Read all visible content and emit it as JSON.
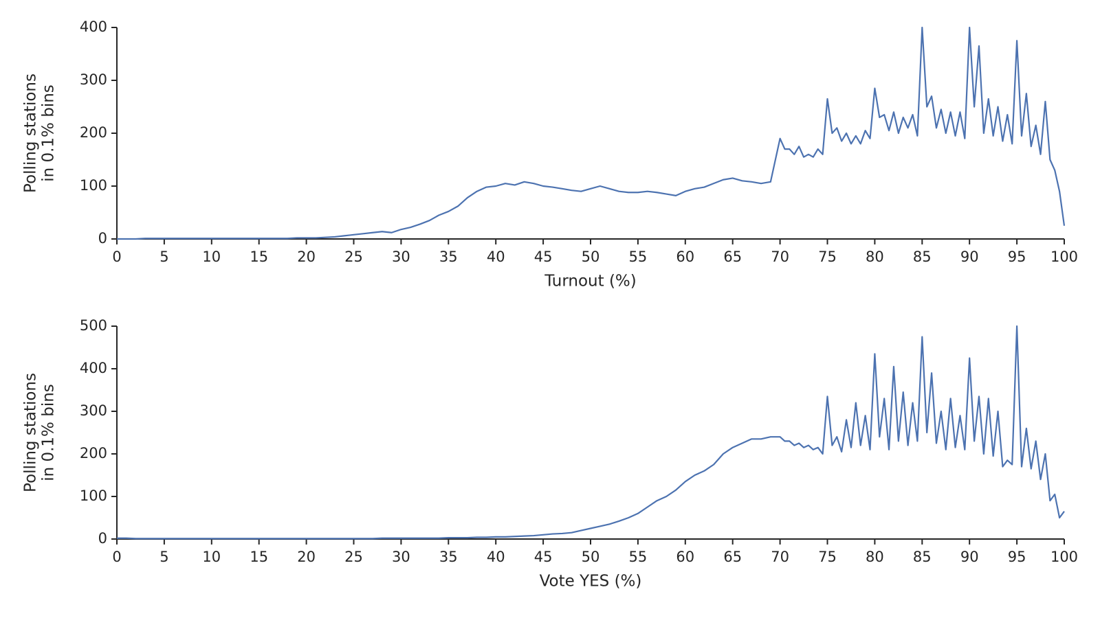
{
  "chart_data": [
    {
      "type": "line",
      "xlabel": "Turnout (%)",
      "ylabel": [
        "Polling stations",
        "in 0.1% bins"
      ],
      "xlim": [
        0,
        100
      ],
      "ylim": [
        0,
        400
      ],
      "xticks": [
        0,
        5,
        10,
        15,
        20,
        25,
        30,
        35,
        40,
        45,
        50,
        55,
        60,
        65,
        70,
        75,
        80,
        85,
        90,
        95,
        100
      ],
      "yticks": [
        0,
        100,
        200,
        300,
        400
      ],
      "x": [
        0,
        1,
        2,
        3,
        4,
        5,
        6,
        7,
        8,
        9,
        10,
        11,
        12,
        13,
        14,
        15,
        16,
        17,
        18,
        19,
        20,
        21,
        22,
        23,
        24,
        25,
        26,
        27,
        28,
        29,
        30,
        31,
        32,
        33,
        34,
        35,
        36,
        37,
        38,
        39,
        40,
        41,
        42,
        43,
        44,
        45,
        46,
        47,
        48,
        49,
        50,
        51,
        52,
        53,
        54,
        55,
        56,
        57,
        58,
        59,
        60,
        61,
        62,
        63,
        64,
        65,
        66,
        67,
        68,
        69,
        70,
        70.5,
        71,
        71.5,
        72,
        72.5,
        73,
        73.5,
        74,
        74.5,
        75,
        75.5,
        76,
        76.5,
        77,
        77.5,
        78,
        78.5,
        79,
        79.5,
        80,
        80.5,
        81,
        81.5,
        82,
        82.5,
        83,
        83.5,
        84,
        84.5,
        85,
        85.5,
        86,
        86.5,
        87,
        87.5,
        88,
        88.5,
        89,
        89.5,
        90,
        90.5,
        91,
        91.5,
        92,
        92.5,
        93,
        93.5,
        94,
        94.5,
        95,
        95.5,
        96,
        96.5,
        97,
        97.5,
        98,
        98.5,
        99,
        99.5,
        100
      ],
      "series": [
        {
          "color": "#4c72b0",
          "values": [
            0,
            0,
            0,
            1,
            1,
            1,
            1,
            1,
            1,
            1,
            1,
            1,
            1,
            1,
            1,
            1,
            1,
            1,
            1,
            2,
            2,
            2,
            3,
            4,
            6,
            8,
            10,
            12,
            14,
            12,
            18,
            22,
            28,
            35,
            45,
            52,
            62,
            78,
            90,
            98,
            100,
            105,
            102,
            108,
            105,
            100,
            98,
            95,
            92,
            90,
            95,
            100,
            95,
            90,
            88,
            88,
            90,
            88,
            85,
            82,
            90,
            95,
            98,
            105,
            112,
            115,
            110,
            108,
            105,
            108,
            190,
            170,
            170,
            160,
            175,
            155,
            160,
            155,
            170,
            160,
            265,
            200,
            210,
            185,
            200,
            180,
            195,
            180,
            205,
            190,
            285,
            230,
            235,
            205,
            240,
            200,
            230,
            210,
            235,
            195,
            400,
            250,
            270,
            210,
            245,
            200,
            240,
            195,
            240,
            190,
            400,
            250,
            365,
            200,
            265,
            195,
            250,
            185,
            235,
            180,
            375,
            195,
            275,
            175,
            215,
            160,
            260,
            150,
            130,
            90,
            25
          ]
        }
      ]
    },
    {
      "type": "line",
      "xlabel": "Vote YES (%)",
      "ylabel": [
        "Polling stations",
        "in 0.1% bins"
      ],
      "xlim": [
        0,
        100
      ],
      "ylim": [
        0,
        500
      ],
      "xticks": [
        0,
        5,
        10,
        15,
        20,
        25,
        30,
        35,
        40,
        45,
        50,
        55,
        60,
        65,
        70,
        75,
        80,
        85,
        90,
        95,
        100
      ],
      "yticks": [
        0,
        100,
        200,
        300,
        400,
        500
      ],
      "x": [
        0,
        1,
        2,
        3,
        4,
        5,
        6,
        7,
        8,
        9,
        10,
        11,
        12,
        13,
        14,
        15,
        16,
        17,
        18,
        19,
        20,
        21,
        22,
        23,
        24,
        25,
        26,
        27,
        28,
        29,
        30,
        31,
        32,
        33,
        34,
        35,
        36,
        37,
        38,
        39,
        40,
        41,
        42,
        43,
        44,
        45,
        46,
        47,
        48,
        49,
        50,
        51,
        52,
        53,
        54,
        55,
        56,
        57,
        58,
        59,
        60,
        61,
        62,
        63,
        64,
        65,
        66,
        67,
        68,
        69,
        70,
        70.5,
        71,
        71.5,
        72,
        72.5,
        73,
        73.5,
        74,
        74.5,
        75,
        75.5,
        76,
        76.5,
        77,
        77.5,
        78,
        78.5,
        79,
        79.5,
        80,
        80.5,
        81,
        81.5,
        82,
        82.5,
        83,
        83.5,
        84,
        84.5,
        85,
        85.5,
        86,
        86.5,
        87,
        87.5,
        88,
        88.5,
        89,
        89.5,
        90,
        90.5,
        91,
        91.5,
        92,
        92.5,
        93,
        93.5,
        94,
        94.5,
        95,
        95.5,
        96,
        96.5,
        97,
        97.5,
        98,
        98.5,
        99,
        99.5,
        100
      ],
      "series": [
        {
          "color": "#4c72b0",
          "values": [
            2,
            2,
            1,
            1,
            1,
            1,
            1,
            1,
            1,
            1,
            1,
            1,
            1,
            1,
            1,
            1,
            1,
            1,
            1,
            1,
            1,
            1,
            1,
            1,
            1,
            1,
            1,
            1,
            2,
            2,
            2,
            2,
            2,
            2,
            2,
            3,
            3,
            3,
            4,
            4,
            5,
            5,
            6,
            7,
            8,
            10,
            12,
            13,
            15,
            20,
            25,
            30,
            35,
            42,
            50,
            60,
            75,
            90,
            100,
            115,
            135,
            150,
            160,
            175,
            200,
            215,
            225,
            235,
            235,
            240,
            240,
            230,
            230,
            220,
            225,
            215,
            220,
            210,
            215,
            200,
            335,
            220,
            240,
            205,
            280,
            215,
            320,
            220,
            290,
            210,
            435,
            240,
            330,
            210,
            405,
            230,
            345,
            220,
            320,
            230,
            475,
            250,
            390,
            225,
            300,
            210,
            330,
            215,
            290,
            210,
            425,
            230,
            335,
            200,
            330,
            195,
            300,
            170,
            185,
            175,
            500,
            170,
            260,
            165,
            230,
            140,
            200,
            90,
            105,
            50,
            65
          ]
        }
      ]
    }
  ]
}
